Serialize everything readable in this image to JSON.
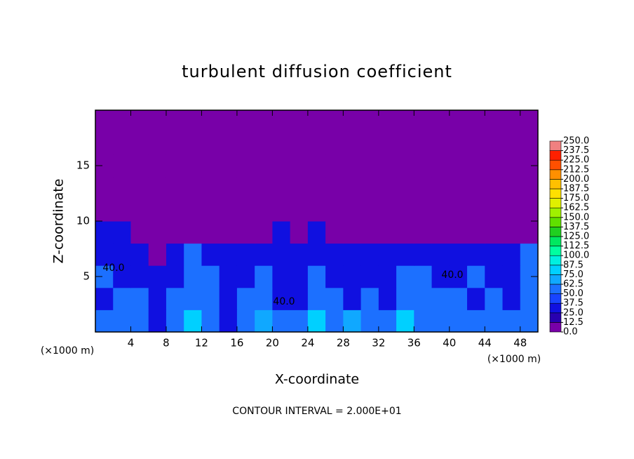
{
  "chart_data": {
    "type": "heatmap",
    "title": "turbulent diffusion coefficient",
    "x_label": "X-coordinate",
    "y_label": "Z-coordinate",
    "x_unit": "(×1000 m)",
    "y_unit": "(×1000 m)",
    "footer": "CONTOUR INTERVAL = 2.000E+01",
    "contour_labels": [
      "40.0",
      "40.0",
      "40.0"
    ],
    "xlim": [
      0,
      50
    ],
    "ylim": [
      0,
      20
    ],
    "xticks": [
      4,
      8,
      12,
      16,
      20,
      24,
      28,
      32,
      36,
      40,
      44,
      48
    ],
    "yticks": [
      5,
      10,
      15
    ],
    "x": [
      1,
      3,
      5,
      7,
      9,
      11,
      13,
      15,
      17,
      19,
      21,
      23,
      25,
      27,
      29,
      31,
      33,
      35,
      37,
      39,
      41,
      43,
      45,
      47,
      49
    ],
    "y": [
      1,
      3,
      5,
      7,
      9,
      11,
      13,
      15,
      17,
      19
    ],
    "z": [
      [
        50,
        62,
        50,
        37,
        62,
        75,
        50,
        37,
        62,
        70,
        50,
        62,
        75,
        62,
        70,
        50,
        62,
        75,
        50,
        62,
        62,
        50,
        62,
        50,
        62
      ],
      [
        37,
        50,
        50,
        37,
        50,
        62,
        62,
        37,
        50,
        62,
        37,
        37,
        62,
        50,
        37,
        50,
        37,
        62,
        50,
        50,
        62,
        37,
        50,
        37,
        50
      ],
      [
        50,
        37,
        37,
        25,
        37,
        62,
        50,
        25,
        37,
        50,
        37,
        37,
        50,
        37,
        37,
        37,
        25,
        50,
        50,
        37,
        37,
        50,
        37,
        37,
        50
      ],
      [
        37,
        37,
        25,
        12,
        25,
        50,
        37,
        25,
        25,
        37,
        37,
        25,
        37,
        25,
        37,
        37,
        25,
        25,
        37,
        37,
        25,
        37,
        37,
        37,
        50
      ],
      [
        25,
        25,
        0,
        0,
        0,
        12,
        12,
        0,
        0,
        12,
        25,
        12,
        25,
        12,
        12,
        0,
        0,
        0,
        0,
        0,
        0,
        0,
        12,
        0,
        12
      ],
      [
        0,
        0,
        0,
        0,
        0,
        0,
        0,
        0,
        0,
        0,
        0,
        0,
        0,
        0,
        0,
        0,
        0,
        0,
        0,
        0,
        0,
        0,
        0,
        0,
        0
      ],
      [
        0,
        0,
        0,
        0,
        0,
        0,
        0,
        0,
        0,
        0,
        0,
        0,
        0,
        0,
        0,
        0,
        0,
        0,
        0,
        0,
        0,
        0,
        0,
        0,
        0
      ],
      [
        0,
        0,
        0,
        0,
        0,
        0,
        0,
        0,
        0,
        0,
        0,
        0,
        0,
        0,
        0,
        0,
        0,
        0,
        0,
        0,
        0,
        0,
        0,
        0,
        0
      ],
      [
        0,
        0,
        0,
        0,
        0,
        0,
        0,
        0,
        0,
        0,
        0,
        0,
        0,
        0,
        0,
        0,
        0,
        0,
        0,
        0,
        0,
        0,
        0,
        0,
        0
      ],
      [
        0,
        0,
        0,
        0,
        0,
        0,
        0,
        0,
        0,
        0,
        0,
        0,
        0,
        0,
        0,
        0,
        0,
        0,
        0,
        0,
        0,
        0,
        0,
        0,
        0
      ]
    ],
    "colorbar_ticks": [
      {
        "value": 0,
        "label": "0.0"
      },
      12.5,
      {
        "value": 25,
        "label": "25.0"
      },
      37.5,
      {
        "value": 50,
        "label": "50.0"
      },
      62.5,
      {
        "value": 75,
        "label": "75.0"
      },
      87.5,
      {
        "value": 100,
        "label": "100.0"
      },
      112.5,
      {
        "value": 125,
        "label": "125.0"
      },
      137.5,
      {
        "value": 150,
        "label": "150.0"
      },
      162.5,
      {
        "value": 175,
        "label": "175.0"
      },
      187.5,
      {
        "value": 200,
        "label": "200.0"
      },
      212.5,
      {
        "value": 225,
        "label": "225.0"
      },
      237.5,
      {
        "value": 250,
        "label": "250.0"
      }
    ],
    "colors": [
      "#7800a8",
      "#2800b0",
      "#1010e0",
      "#1844ff",
      "#1c70ff",
      "#10a8ff",
      "#00d0ff",
      "#00f0e0",
      "#00ffa0",
      "#00e860",
      "#20d020",
      "#60e000",
      "#a0f000",
      "#e0f000",
      "#ffe000",
      "#ffc000",
      "#ff9000",
      "#ff5000",
      "#ff2000",
      "#f08080"
    ]
  }
}
